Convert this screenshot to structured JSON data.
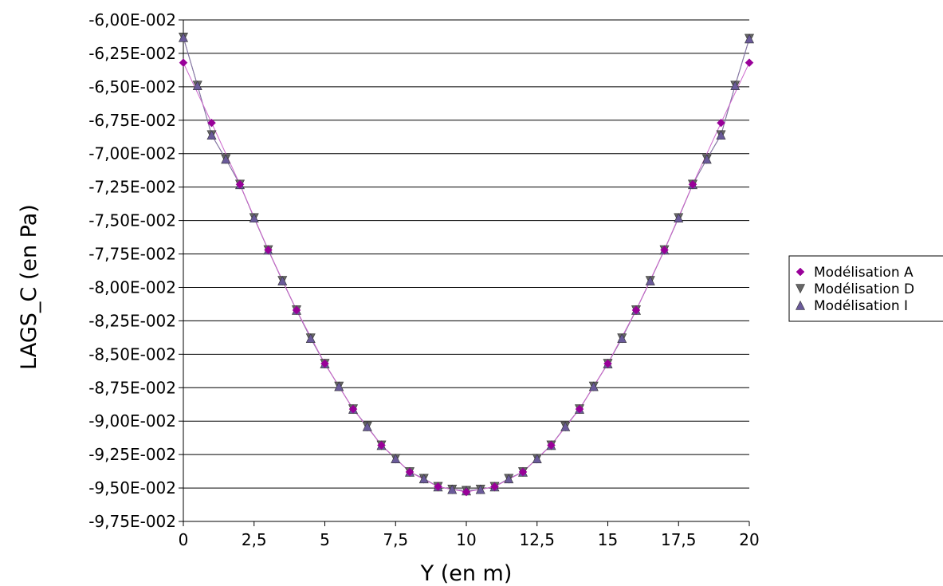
{
  "chart_data": {
    "type": "line",
    "xlabel": "Y (en m)",
    "ylabel": "LAGS_C (en Pa)",
    "xlim": [
      0,
      20
    ],
    "ylim": [
      -0.0975,
      -0.06
    ],
    "x_ticks": [
      "0",
      "2,5",
      "5",
      "7,5",
      "10",
      "12,5",
      "15",
      "17,5",
      "20"
    ],
    "y_ticks": [
      "-6,00E-002",
      "-6,25E-002",
      "-6,50E-002",
      "-6,75E-002",
      "-7,00E-002",
      "-7,25E-002",
      "-7,50E-002",
      "-7,75E-002",
      "-8,00E-002",
      "-8,25E-002",
      "-8,50E-002",
      "-8,75E-002",
      "-9,00E-002",
      "-9,25E-002",
      "-9,50E-002",
      "-9,75E-002"
    ],
    "grid": true,
    "legend_position": "right",
    "series": [
      {
        "name": "Modélisation A",
        "color": "#990099",
        "line_color": "#cc66cc",
        "marker": "diamond",
        "x": [
          0,
          1,
          2,
          3,
          4,
          5,
          6,
          7,
          8,
          9,
          10,
          11,
          12,
          13,
          14,
          15,
          16,
          17,
          18,
          19,
          20
        ],
        "y": [
          -0.0632,
          -0.0677,
          -0.0723,
          -0.0772,
          -0.0817,
          -0.0857,
          -0.0891,
          -0.0918,
          -0.0938,
          -0.0949,
          -0.0953,
          -0.0949,
          -0.0938,
          -0.0918,
          -0.0891,
          -0.0857,
          -0.0817,
          -0.0772,
          -0.0723,
          -0.0677,
          -0.0632
        ]
      },
      {
        "name": "Modélisation D",
        "color": "#666666",
        "line_color": "#666666",
        "marker": "triangle-down",
        "x": [
          0,
          0.5,
          1,
          1.5,
          2,
          2.5,
          3,
          3.5,
          4,
          4.5,
          5,
          5.5,
          6,
          6.5,
          7,
          7.5,
          8,
          8.5,
          9,
          9.5,
          10,
          10.5,
          11,
          11.5,
          12,
          12.5,
          13,
          13.5,
          14,
          14.5,
          15,
          15.5,
          16,
          16.5,
          17,
          17.5,
          18,
          18.5,
          19,
          19.5,
          20
        ],
        "y": [
          -0.0613,
          -0.0649,
          -0.0686,
          -0.0704,
          -0.0723,
          -0.0748,
          -0.0772,
          -0.0795,
          -0.0817,
          -0.0838,
          -0.0857,
          -0.0874,
          -0.0891,
          -0.0904,
          -0.0918,
          -0.0928,
          -0.0938,
          -0.0943,
          -0.0949,
          -0.0951,
          -0.0952,
          -0.0951,
          -0.0949,
          -0.0943,
          -0.0938,
          -0.0928,
          -0.0918,
          -0.0904,
          -0.0891,
          -0.0874,
          -0.0857,
          -0.0838,
          -0.0817,
          -0.0795,
          -0.0772,
          -0.0748,
          -0.0723,
          -0.0704,
          -0.0686,
          -0.0649,
          -0.0614
        ]
      },
      {
        "name": "Modélisation I",
        "color": "#6a5a9a",
        "line_color": "#8877aa",
        "marker": "triangle-up",
        "x": [
          0,
          0.5,
          1,
          1.5,
          2,
          2.5,
          3,
          3.5,
          4,
          4.5,
          5,
          5.5,
          6,
          6.5,
          7,
          7.5,
          8,
          8.5,
          9,
          9.5,
          10,
          10.5,
          11,
          11.5,
          12,
          12.5,
          13,
          13.5,
          14,
          14.5,
          15,
          15.5,
          16,
          16.5,
          17,
          17.5,
          18,
          18.5,
          19,
          19.5,
          20
        ],
        "y": [
          -0.0613,
          -0.0649,
          -0.0686,
          -0.0704,
          -0.0723,
          -0.0748,
          -0.0772,
          -0.0795,
          -0.0817,
          -0.0838,
          -0.0857,
          -0.0874,
          -0.0891,
          -0.0904,
          -0.0918,
          -0.0928,
          -0.0938,
          -0.0943,
          -0.0949,
          -0.0951,
          -0.0952,
          -0.0951,
          -0.0949,
          -0.0943,
          -0.0938,
          -0.0928,
          -0.0918,
          -0.0904,
          -0.0891,
          -0.0874,
          -0.0857,
          -0.0838,
          -0.0817,
          -0.0795,
          -0.0772,
          -0.0748,
          -0.0723,
          -0.0704,
          -0.0686,
          -0.0649,
          -0.0614
        ]
      }
    ]
  }
}
